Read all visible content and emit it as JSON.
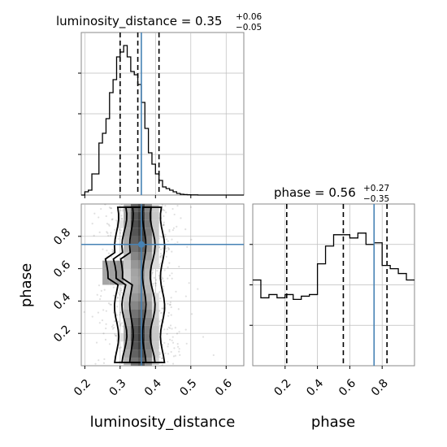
{
  "chart_data": [
    {
      "type": "histogram",
      "panel": "luminosity_distance-marginal",
      "title": {
        "main": "luminosity_distance = 0.35",
        "sup": "+0.06",
        "sub": "−0.05"
      },
      "x_range": [
        0.19,
        0.65
      ],
      "x_ticks": [
        0.2,
        0.3,
        0.4,
        0.5,
        0.6
      ],
      "y_range": [
        0,
        1.0
      ],
      "y_tick_values": [
        0.25,
        0.5,
        0.75
      ],
      "bins": [
        0.19,
        0.2,
        0.21,
        0.22,
        0.23,
        0.24,
        0.25,
        0.26,
        0.27,
        0.28,
        0.29,
        0.3,
        0.31,
        0.32,
        0.33,
        0.34,
        0.35,
        0.36,
        0.37,
        0.38,
        0.39,
        0.4,
        0.41,
        0.42,
        0.43,
        0.44,
        0.45,
        0.46,
        0.47,
        0.48,
        0.49,
        0.5,
        0.51,
        0.52,
        0.53,
        0.54,
        0.55,
        0.56,
        0.57,
        0.58,
        0.59,
        0.6,
        0.61,
        0.62,
        0.63,
        0.64,
        0.65
      ],
      "counts": [
        0.0,
        0.02,
        0.03,
        0.13,
        0.13,
        0.32,
        0.38,
        0.47,
        0.63,
        0.71,
        0.85,
        0.88,
        0.92,
        0.85,
        0.76,
        0.74,
        0.68,
        0.57,
        0.41,
        0.26,
        0.19,
        0.13,
        0.09,
        0.05,
        0.04,
        0.03,
        0.02,
        0.01,
        0.005,
        0.003,
        0.002,
        0.001,
        0.001,
        0,
        0,
        0,
        0,
        0,
        0,
        0,
        0,
        0,
        0,
        0,
        0,
        0
      ],
      "quantile_lines": [
        0.3,
        0.35,
        0.41
      ],
      "truth_line": 0.36,
      "colors": {
        "hist": "#000000",
        "truth": "#4682b4"
      }
    },
    {
      "type": "histogram",
      "panel": "phase-marginal",
      "title": {
        "main": "phase = 0.56",
        "sup": "+0.27",
        "sub": "−0.35"
      },
      "xlabel": "phase",
      "x_range": [
        0.0,
        1.0
      ],
      "x_ticks": [
        0.2,
        0.4,
        0.6,
        0.8
      ],
      "y_range": [
        0,
        1.0
      ],
      "y_tick_values": [
        0.25,
        0.5,
        0.75
      ],
      "bins": [
        0.0,
        0.05,
        0.1,
        0.15,
        0.2,
        0.25,
        0.3,
        0.35,
        0.4,
        0.45,
        0.5,
        0.55,
        0.6,
        0.65,
        0.7,
        0.75,
        0.8,
        0.85,
        0.9,
        0.95,
        1.0
      ],
      "counts": [
        0.53,
        0.42,
        0.44,
        0.42,
        0.44,
        0.41,
        0.43,
        0.44,
        0.63,
        0.74,
        0.81,
        0.81,
        0.79,
        0.82,
        0.75,
        0.76,
        0.62,
        0.6,
        0.57,
        0.53
      ],
      "quantile_lines": [
        0.21,
        0.56,
        0.83
      ],
      "truth_line": 0.75,
      "colors": {
        "hist": "#000000",
        "truth": "#4682b4"
      }
    },
    {
      "type": "contour-density",
      "panel": "phase-vs-luminosity_distance",
      "xlabel": "luminosity_distance",
      "ylabel": "phase",
      "x_range": [
        0.19,
        0.65
      ],
      "y_range": [
        0.0,
        1.0
      ],
      "x_ticks": [
        0.2,
        0.3,
        0.4,
        0.5,
        0.6
      ],
      "y_ticks": [
        0.2,
        0.4,
        0.6,
        0.8
      ],
      "truth_point": {
        "x": 0.36,
        "y": 0.75
      },
      "colors": {
        "density": "#000000",
        "truth": "#4682b4"
      }
    }
  ]
}
